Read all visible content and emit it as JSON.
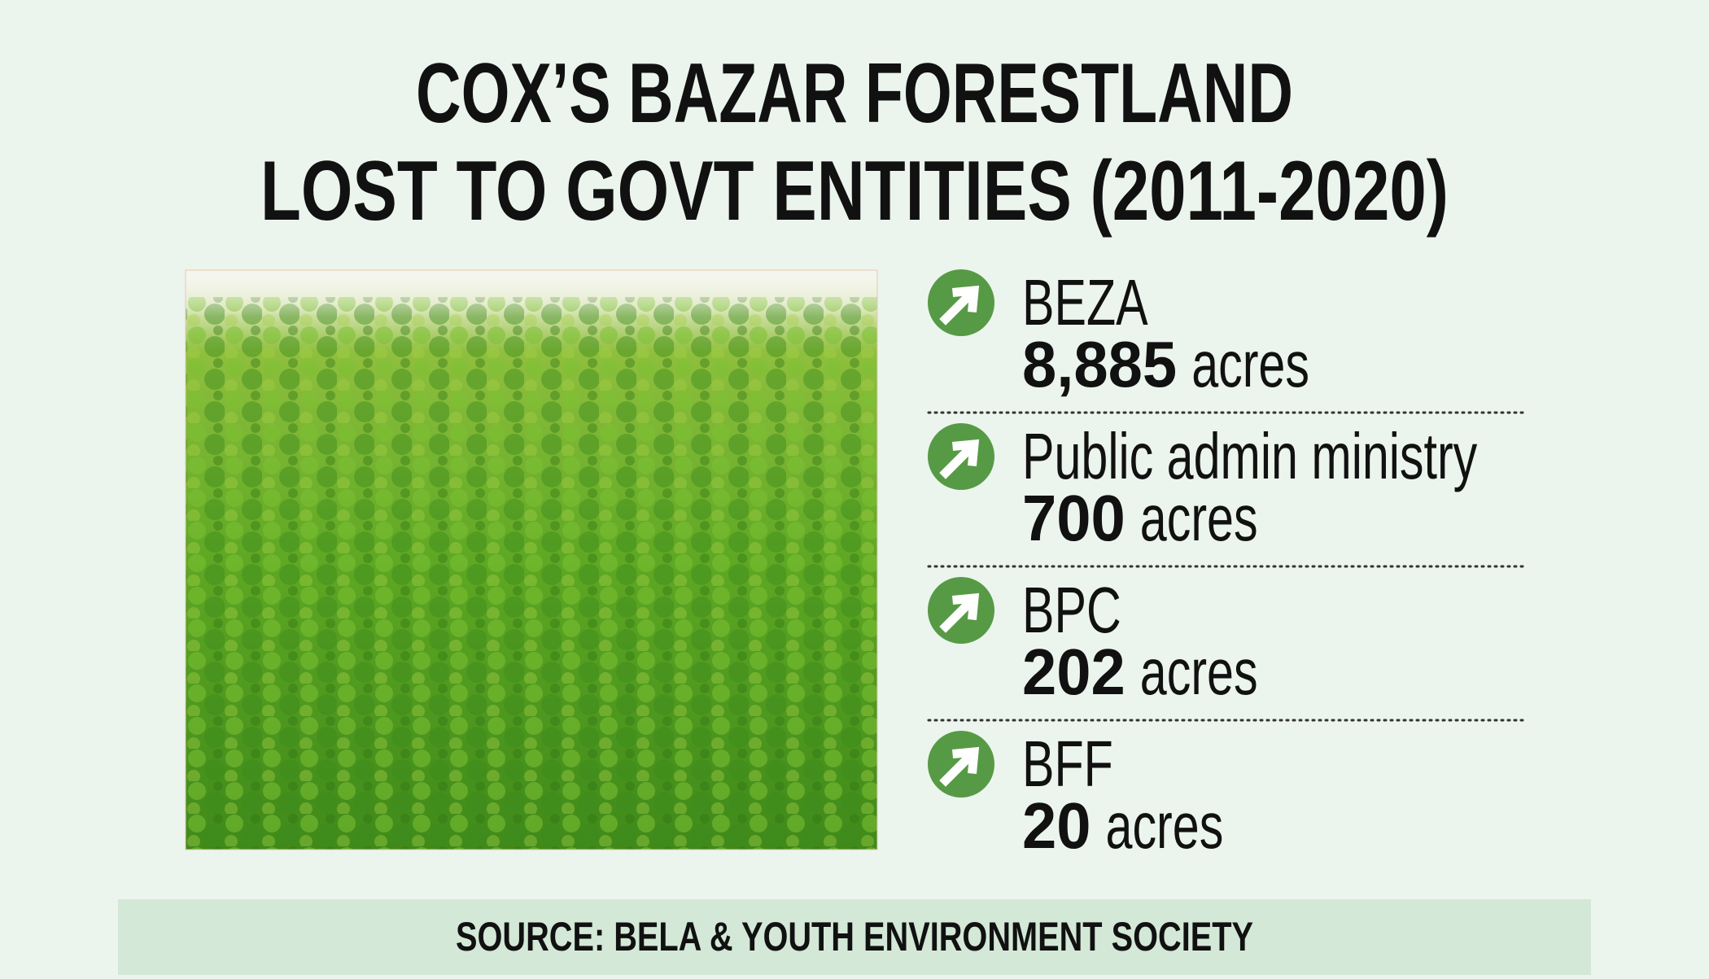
{
  "title": [
    "COX’S BAZAR FORESTLAND",
    "LOST TO GOVT ENTITIES (2011-2020)"
  ],
  "items": [
    {
      "name": "BEZA",
      "amount": "8,885",
      "unit": "acres"
    },
    {
      "name": "Public admin ministry",
      "amount": "700",
      "unit": "acres"
    },
    {
      "name": "BPC",
      "amount": "202",
      "unit": "acres"
    },
    {
      "name": "BFF",
      "amount": "20",
      "unit": "acres"
    }
  ],
  "source": "SOURCE: BELA & YOUTH ENVIRONMENT SOCIETY"
}
